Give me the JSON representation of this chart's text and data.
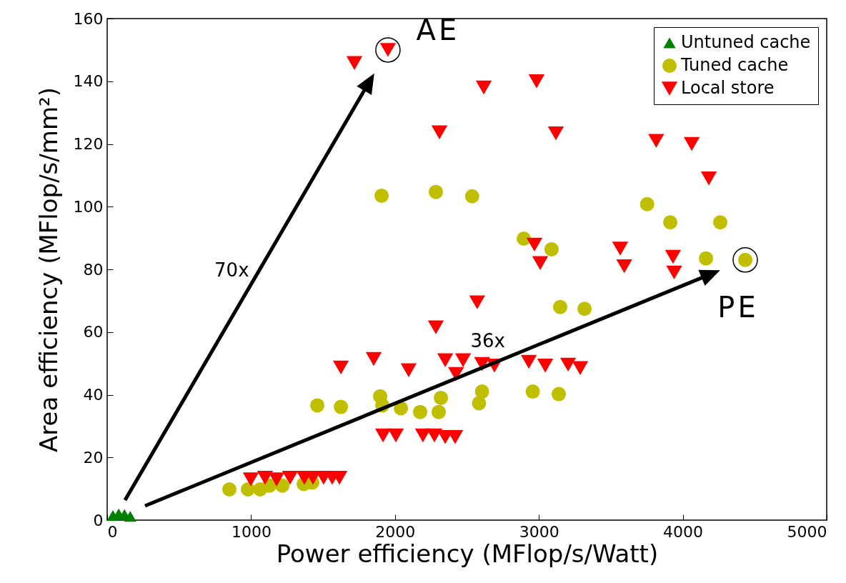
{
  "chart_data": {
    "type": "scatter",
    "xlabel": "Power efficiency (MFlop/s/Watt)",
    "ylabel": "Area efficiency (MFlop/s/mm²)",
    "xlim": [
      0,
      5000
    ],
    "xticks": [
      0,
      1000,
      2000,
      3000,
      4000,
      5000
    ],
    "ylim": [
      0,
      160
    ],
    "yticks": [
      0,
      20,
      40,
      60,
      80,
      100,
      120,
      140,
      160
    ],
    "legend": "top right",
    "series": [
      {
        "name": "Untuned cache",
        "color": "#008000",
        "marker": "triangle",
        "x": [
          40,
          80,
          120,
          160
        ],
        "values": [
          1.5,
          2,
          1.8,
          1.2
        ]
      },
      {
        "name": "Tuned cache",
        "color": "#bfbf00",
        "marker": "circle",
        "x": [
          849,
          978,
          1063,
          1127,
          1217,
          1366,
          1425,
          1460,
          1624,
          1897,
          1912,
          2041,
          2175,
          2304,
          2319,
          2584,
          2605,
          2957,
          3138,
          1907,
          2284,
          2536,
          3752,
          3913,
          4260,
          2895,
          3088,
          4161,
          4434,
          3148,
          3317
        ],
        "values": [
          9.8,
          9.8,
          9.8,
          11,
          11,
          11.5,
          12,
          36.6,
          36.1,
          39.5,
          36.6,
          35.7,
          34.5,
          34.5,
          39,
          37.3,
          41,
          41,
          40.2,
          103.5,
          104.7,
          103.3,
          100.8,
          95,
          95,
          89.8,
          86.4,
          83.5,
          83,
          68,
          67.4
        ]
      },
      {
        "name": "Local store",
        "color": "#ff0000",
        "marker": "triangle-down",
        "x": [
          998,
          1097,
          1177,
          1271,
          1370,
          1430,
          1504,
          1564,
          1614,
          1624,
          1852,
          1917,
          2006,
          2095,
          2194,
          2274,
          2284,
          2349,
          2349,
          2418,
          2424,
          2473,
          2571,
          2605,
          2691,
          2930,
          3044,
          3203,
          3287,
          2969,
          3009,
          3565,
          3593,
          3932,
          3940,
          4181,
          3815,
          4062,
          3118,
          2309,
          2617,
          2984,
          1718,
          1951
        ],
        "values": [
          13,
          13.5,
          13,
          13.5,
          13.5,
          13.5,
          13.5,
          13.5,
          13.5,
          48.7,
          51.4,
          27,
          27,
          47.8,
          27,
          27,
          61.5,
          51,
          26.5,
          26.5,
          46.6,
          51,
          69.5,
          49.8,
          49.3,
          50.5,
          49.3,
          49.6,
          48.5,
          87.9,
          82,
          86.6,
          81,
          84,
          79,
          109,
          121,
          120,
          123.4,
          123.7,
          138,
          140,
          145.8,
          150
        ]
      }
    ],
    "annotations": [
      {
        "text": "AE",
        "x": 1951,
        "y": 150
      },
      {
        "text": "PE",
        "x": 4434,
        "y": 83
      },
      "70x",
      "36x"
    ]
  }
}
